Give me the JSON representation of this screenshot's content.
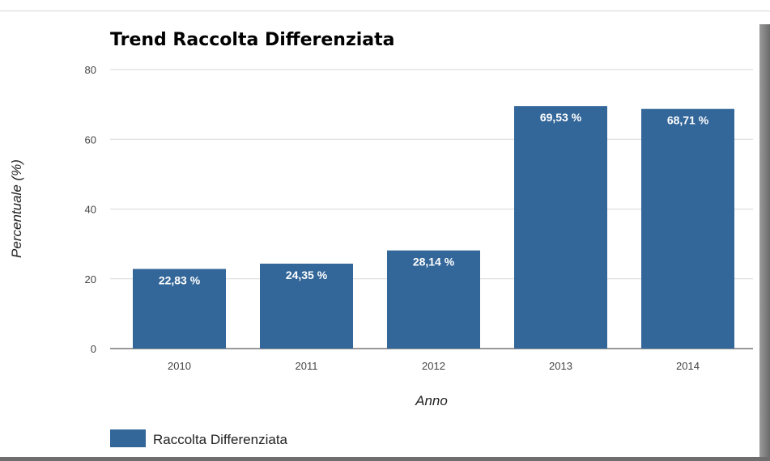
{
  "chart_data": {
    "type": "bar",
    "title": "Trend Raccolta Differenziata",
    "xlabel": "Anno",
    "ylabel": "Percentuale (%)",
    "categories": [
      "2010",
      "2011",
      "2012",
      "2013",
      "2014"
    ],
    "series": [
      {
        "name": "Raccolta Differenziata",
        "values": [
          22.83,
          24.35,
          28.14,
          69.53,
          68.71
        ],
        "labels": [
          "22,83 %",
          "24,35 %",
          "28,14 %",
          "69,53 %",
          "68,71 %"
        ],
        "color": "#336699"
      }
    ],
    "ylim": [
      0,
      80
    ],
    "yticks": [
      0,
      20,
      40,
      60,
      80
    ],
    "grid": true,
    "legend": "bottom-left"
  }
}
